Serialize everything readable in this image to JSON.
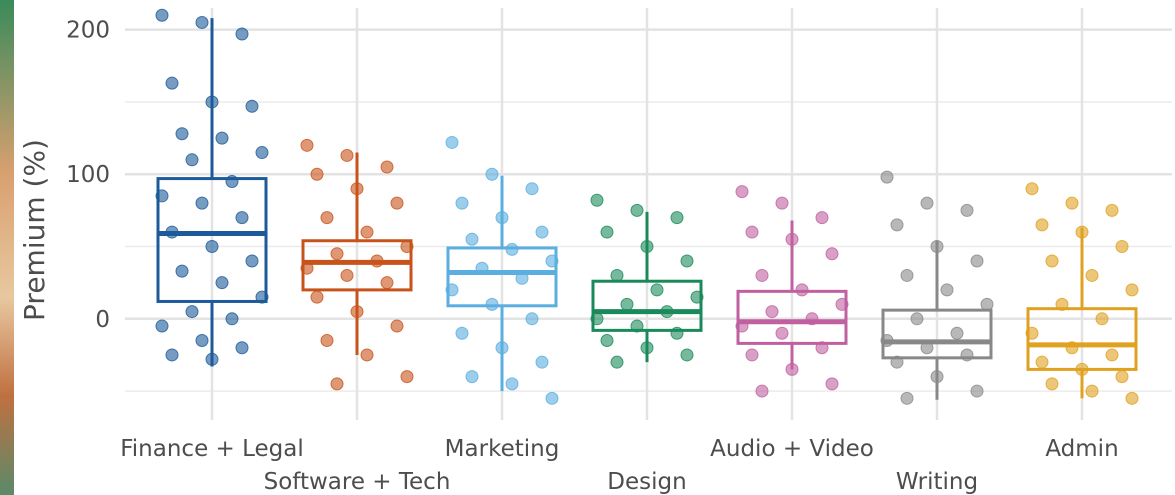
{
  "chart_data": {
    "type": "box",
    "ylabel": "Premium (%)",
    "ylim": [
      -70,
      215
    ],
    "yticks": [
      0,
      100,
      200
    ],
    "yminor": [
      -50,
      50,
      150
    ],
    "grid": true,
    "categories": [
      "Finance + Legal",
      "Software + Tech",
      "Marketing",
      "Design",
      "Audio + Video",
      "Writing",
      "Admin"
    ],
    "boxes": [
      {
        "color": "#1c5a99",
        "min": -33,
        "q1": 12,
        "median": 59,
        "q3": 97,
        "max": 208,
        "points": [
          210,
          205,
          197,
          163,
          150,
          147,
          128,
          125,
          115,
          110,
          95,
          85,
          80,
          70,
          60,
          50,
          40,
          33,
          25,
          15,
          5,
          0,
          -5,
          -15,
          -20,
          -25,
          -28
        ]
      },
      {
        "color": "#c8531a",
        "min": -25,
        "q1": 20,
        "median": 39,
        "q3": 54,
        "max": 115,
        "points": [
          120,
          113,
          105,
          100,
          90,
          80,
          70,
          60,
          50,
          45,
          40,
          35,
          30,
          25,
          15,
          5,
          -5,
          -15,
          -25,
          -40,
          -45
        ]
      },
      {
        "color": "#5aaee0",
        "min": -50,
        "q1": 9,
        "median": 32,
        "q3": 49,
        "max": 99,
        "points": [
          122,
          100,
          90,
          80,
          70,
          60,
          55,
          48,
          40,
          35,
          28,
          20,
          10,
          0,
          -10,
          -20,
          -30,
          -40,
          -45,
          -55
        ]
      },
      {
        "color": "#1a8a5a",
        "min": -30,
        "q1": -8,
        "median": 5,
        "q3": 26,
        "max": 74,
        "points": [
          82,
          75,
          70,
          60,
          50,
          40,
          30,
          20,
          15,
          10,
          5,
          0,
          -5,
          -10,
          -15,
          -20,
          -25,
          -30
        ]
      },
      {
        "color": "#c060a0",
        "min": -35,
        "q1": -17,
        "median": -2,
        "q3": 19,
        "max": 68,
        "points": [
          88,
          80,
          70,
          60,
          55,
          45,
          30,
          20,
          10,
          5,
          0,
          -5,
          -10,
          -20,
          -25,
          -35,
          -45,
          -50
        ]
      },
      {
        "color": "#888888",
        "min": -56,
        "q1": -27,
        "median": -16,
        "q3": 6,
        "max": 54,
        "points": [
          98,
          80,
          75,
          65,
          50,
          40,
          30,
          20,
          10,
          0,
          -10,
          -15,
          -20,
          -25,
          -30,
          -40,
          -50,
          -55
        ]
      },
      {
        "color": "#e0a020",
        "min": -55,
        "q1": -35,
        "median": -18,
        "q3": 7,
        "max": 63,
        "points": [
          90,
          80,
          75,
          65,
          60,
          50,
          40,
          30,
          20,
          10,
          0,
          -10,
          -20,
          -25,
          -30,
          -35,
          -40,
          -45,
          -50,
          -55
        ]
      }
    ]
  }
}
